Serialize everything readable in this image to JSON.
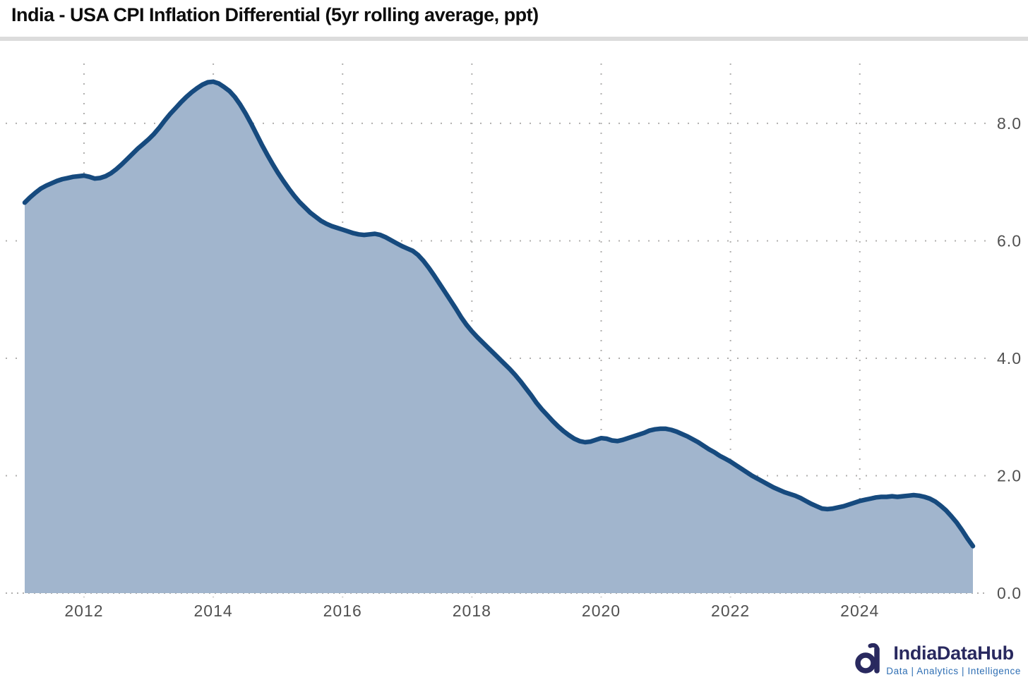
{
  "title": "India - USA CPI Inflation Differential (5yr rolling average, ppt)",
  "logo": {
    "name": "IndiaDataHub",
    "tagline": "Data | Analytics | Intelligence"
  },
  "colors": {
    "line": "#164a7e",
    "fill": "#a1b5cd",
    "grid": "#b0afae",
    "axis_label": "#515151",
    "title": "#0d0d0d",
    "divider": "#dcdcdc",
    "logo_navy": "#29295f",
    "logo_blue": "#2f6fb4",
    "background": "#ffffff"
  },
  "chart_data": {
    "type": "area",
    "title": "India - USA CPI Inflation Differential (5yr rolling average, ppt)",
    "xlabel": "",
    "ylabel": "",
    "grid": "dotted",
    "legend_position": "none",
    "x_unit": "year (monthly observations)",
    "x_start": 2011.083,
    "x_step": 0.083333,
    "xlim": [
      2011.083,
      2025.75
    ],
    "ylim": [
      0,
      9.02
    ],
    "x_ticks": {
      "years": [
        2012,
        2014,
        2016,
        2018,
        2020,
        2022,
        2024
      ],
      "labels": [
        "2012",
        "2014",
        "2016",
        "2018",
        "2020",
        "2022",
        "2024"
      ]
    },
    "y_ticks": {
      "values": [
        0,
        2,
        4,
        6,
        8
      ],
      "labels": [
        "0.0",
        "2.0",
        "4.0",
        "6.0",
        "8.0"
      ],
      "side": "right"
    },
    "series": [
      {
        "name": "India - USA CPI inflation differential (5yr rolling average, ppt)",
        "values": [
          6.65,
          6.74,
          6.82,
          6.89,
          6.94,
          6.98,
          7.02,
          7.05,
          7.07,
          7.09,
          7.1,
          7.11,
          7.09,
          7.06,
          7.07,
          7.1,
          7.15,
          7.22,
          7.3,
          7.39,
          7.48,
          7.57,
          7.65,
          7.73,
          7.82,
          7.93,
          8.05,
          8.16,
          8.26,
          8.36,
          8.45,
          8.53,
          8.6,
          8.66,
          8.7,
          8.71,
          8.68,
          8.62,
          8.55,
          8.45,
          8.32,
          8.17,
          8.0,
          7.82,
          7.64,
          7.47,
          7.31,
          7.16,
          7.02,
          6.89,
          6.77,
          6.66,
          6.57,
          6.48,
          6.41,
          6.34,
          6.29,
          6.25,
          6.22,
          6.19,
          6.16,
          6.13,
          6.11,
          6.1,
          6.11,
          6.12,
          6.1,
          6.06,
          6.01,
          5.96,
          5.91,
          5.87,
          5.83,
          5.76,
          5.66,
          5.54,
          5.41,
          5.27,
          5.13,
          4.99,
          4.85,
          4.7,
          4.57,
          4.46,
          4.36,
          4.27,
          4.18,
          4.09,
          4.0,
          3.91,
          3.82,
          3.72,
          3.61,
          3.49,
          3.37,
          3.24,
          3.13,
          3.03,
          2.93,
          2.84,
          2.76,
          2.69,
          2.63,
          2.59,
          2.57,
          2.58,
          2.61,
          2.64,
          2.63,
          2.6,
          2.59,
          2.61,
          2.64,
          2.67,
          2.7,
          2.73,
          2.77,
          2.79,
          2.8,
          2.8,
          2.78,
          2.75,
          2.71,
          2.67,
          2.62,
          2.57,
          2.51,
          2.45,
          2.4,
          2.34,
          2.29,
          2.24,
          2.18,
          2.12,
          2.06,
          2.0,
          1.95,
          1.9,
          1.85,
          1.8,
          1.76,
          1.72,
          1.69,
          1.66,
          1.62,
          1.57,
          1.52,
          1.48,
          1.44,
          1.43,
          1.44,
          1.46,
          1.48,
          1.51,
          1.54,
          1.57,
          1.59,
          1.61,
          1.63,
          1.64,
          1.64,
          1.65,
          1.64,
          1.65,
          1.66,
          1.67,
          1.66,
          1.64,
          1.61,
          1.56,
          1.49,
          1.41,
          1.31,
          1.2,
          1.07,
          0.93,
          0.8
        ]
      }
    ]
  }
}
